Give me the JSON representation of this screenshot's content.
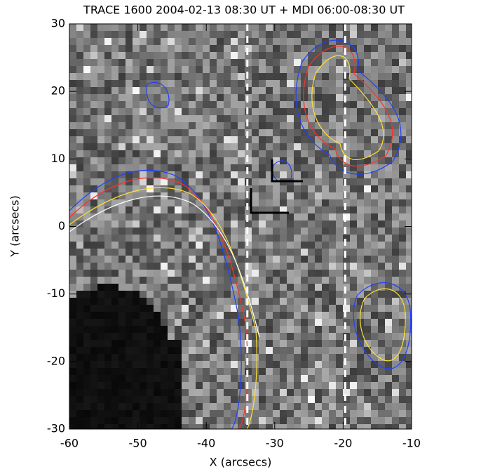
{
  "chart_data": {
    "type": "image",
    "title": "TRACE 1600 2004-02-13 08:30 UT + MDI 06:00-08:30 UT",
    "xlabel": "X (arcsecs)",
    "ylabel": "Y (arcsecs)",
    "xlim": [
      -60,
      -10
    ],
    "ylim": [
      -30,
      30
    ],
    "xticks": [
      -60,
      -50,
      -40,
      -30,
      -20,
      -10
    ],
    "yticks": [
      -30,
      -20,
      -10,
      0,
      10,
      20,
      30
    ],
    "vlines": [
      -34,
      -19.7
    ],
    "vline_color": "#ffffff"
  }
}
